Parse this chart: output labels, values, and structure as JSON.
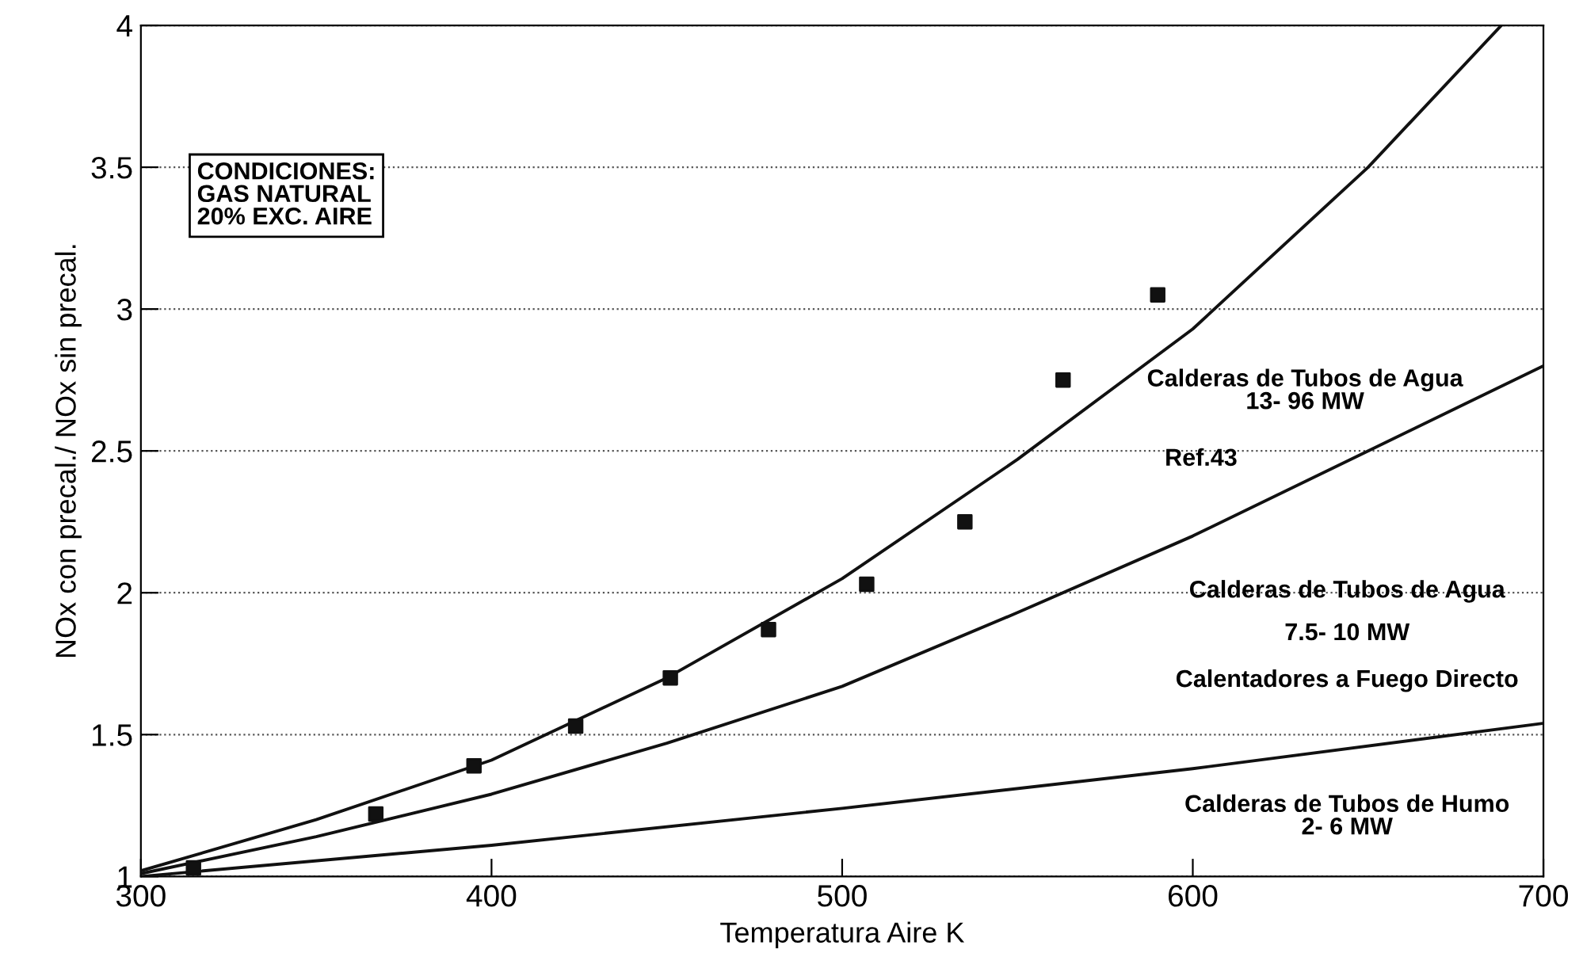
{
  "chart_data": {
    "type": "line",
    "xlabel": "Temperatura Aire K",
    "ylabel": "NOx con precal./ NOx sin precal.",
    "xlim": [
      300,
      700
    ],
    "xticks": [
      300,
      400,
      500,
      600,
      700
    ],
    "ylim": [
      1,
      4
    ],
    "yticks": [
      1,
      1.5,
      2,
      2.5,
      3,
      3.5,
      4
    ],
    "grid": "y",
    "series": [
      {
        "type": "scatter",
        "marker": "square",
        "color": "#111111",
        "x": [
          315,
          367,
          395,
          424,
          451,
          479,
          507,
          535,
          563,
          590
        ],
        "values": [
          1.03,
          1.22,
          1.39,
          1.53,
          1.7,
          1.87,
          2.03,
          2.25,
          2.75,
          3.05
        ]
      },
      {
        "color": "#111111",
        "x": [
          300,
          350,
          400,
          450,
          500,
          550,
          600,
          650,
          688
        ],
        "values": [
          1.02,
          1.2,
          1.41,
          1.7,
          2.05,
          2.47,
          2.93,
          3.5,
          4.0
        ]
      },
      {
        "color": "#111111",
        "x": [
          300,
          350,
          400,
          450,
          500,
          550,
          600,
          650,
          700
        ],
        "values": [
          1.01,
          1.14,
          1.29,
          1.47,
          1.67,
          1.93,
          2.2,
          2.5,
          2.8
        ]
      },
      {
        "color": "#111111",
        "x": [
          300,
          400,
          500,
          600,
          700
        ],
        "values": [
          1.0,
          1.11,
          1.24,
          1.38,
          1.54
        ]
      }
    ],
    "annotations": [
      "CONDICIONES:\nGAS NATURAL\n20% EXC. AIRE",
      "Calderas de Tubos de Agua\n13- 96 MW",
      "Ref.43",
      "Calderas de Tubos de Agua",
      "7.5- 10 MW",
      "Calentadores a Fuego Directo",
      "Calderas de Tubos de Humo\n2- 6 MW"
    ]
  }
}
